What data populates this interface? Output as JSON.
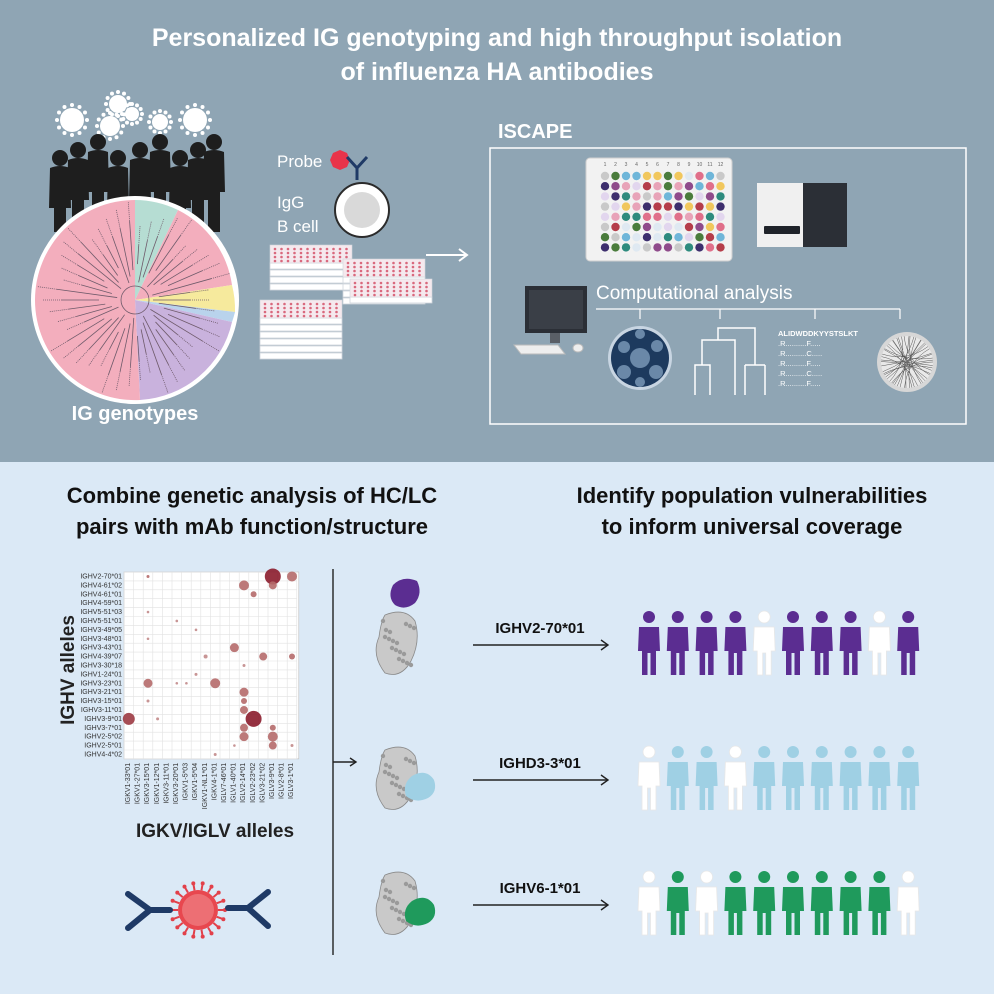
{
  "top": {
    "title_line1": "Personalized IG genotyping and high throughput isolation",
    "title_line2": "of influenza HA antibodies",
    "genotypes_label": "IG genotypes",
    "probe_label": "Probe",
    "igg_label": "IgG",
    "bcell_label": "B cell",
    "iscape_label": "ISCAPE",
    "computational_label": "Computational analysis",
    "sequence_header": "ALIDWDDKYYSTSLKT",
    "sequence_rows": [
      ".R..........F.....",
      ".R..........C.....",
      ".R..........F.....",
      ".R..........C.....",
      ".R..........F....."
    ],
    "plate_numbers": [
      "1",
      "2",
      "3",
      "4",
      "5",
      "6",
      "7",
      "8",
      "9",
      "10",
      "11",
      "12"
    ],
    "colors": {
      "bg": "#8fa5b4",
      "box": "#ffffff",
      "pink": "#f3aebd",
      "teal": "#b6ddd3",
      "purple": "#c9b2dd",
      "yellow": "#f6ea9d",
      "probe": "#e8344a",
      "antibody": "#1f3a66"
    }
  },
  "bottom": {
    "left_heading_line1": "Combine genetic analysis of HC/LC",
    "left_heading_line2": "pairs with mAb function/structure",
    "right_heading_line1": "Identify population vulnerabilities",
    "right_heading_line2": "to inform universal coverage",
    "y_axis_label": "IGHV alleles",
    "x_axis_label": "IGKV/IGLV alleles",
    "rows": [
      {
        "gene": "IGHV2-70*01",
        "colors": [
          "#5b2d91",
          "#5b2d91",
          "#5b2d91",
          "#5b2d91",
          "#ffffff",
          "#5b2d91",
          "#5b2d91",
          "#5b2d91",
          "#ffffff",
          "#5b2d91"
        ]
      },
      {
        "gene": "IGHD3-3*01",
        "colors": [
          "#ffffff",
          "#9fd0e4",
          "#9fd0e4",
          "#ffffff",
          "#9fd0e4",
          "#9fd0e4",
          "#9fd0e4",
          "#9fd0e4",
          "#9fd0e4",
          "#9fd0e4"
        ]
      },
      {
        "gene": "IGHV6-1*01",
        "colors": [
          "#ffffff",
          "#1f9a5c",
          "#ffffff",
          "#1f9a5c",
          "#1f9a5c",
          "#1f9a5c",
          "#1f9a5c",
          "#1f9a5c",
          "#1f9a5c",
          "#ffffff"
        ]
      }
    ],
    "heatmap": {
      "ighv_alleles": [
        "IGHV2-70*01",
        "IGHV4-61*02",
        "IGHV4-61*01",
        "IGHV4-59*01",
        "IGHV5-51*03",
        "IGHV5-51*01",
        "IGHV3-49*05",
        "IGHV3-48*01",
        "IGHV3-43*01",
        "IGHV4-39*07",
        "IGHV3-30*18",
        "IGHV1-24*01",
        "IGHV3-23*01",
        "IGHV3-21*01",
        "IGHV3-15*01",
        "IGHV3-11*01",
        "IGHV3-9*01",
        "IGHV3-7*01",
        "IGHV2-5*02",
        "IGHV2-5*01",
        "IGHV4-4*02"
      ],
      "light_alleles": [
        "IGKV1-33*01",
        "IGKV1-27*01",
        "IGKV3-15*01",
        "IGKV1-12*01",
        "IGKV3-11*01",
        "IGKV3-20*01",
        "IGKV1-5*03",
        "IGKV1-5*04",
        "IGKV1-NL1*01",
        "IGKV4-1*01",
        "IGLV7-46*01",
        "IGLV1-40*01",
        "IGLV2-14*01",
        "IGLV2-23*02",
        "IGLV3-21*02",
        "IGLV3-9*01",
        "IGLV2-8*01",
        "IGLV3-1*01"
      ]
    }
  }
}
